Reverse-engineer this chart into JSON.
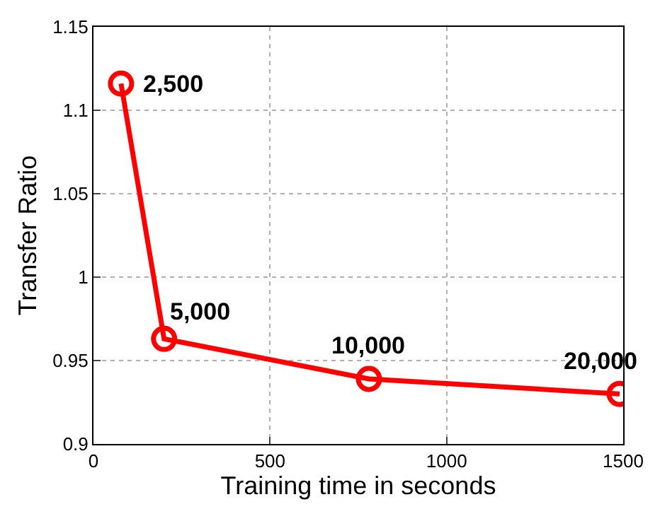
{
  "chart_data": {
    "type": "line",
    "xlabel": "Training time in seconds",
    "ylabel": "Transfer Ratio",
    "x": [
      78,
      200,
      780,
      1490
    ],
    "series": [
      {
        "color": "#ff0000",
        "values": [
          1.116,
          0.963,
          0.939,
          0.93
        ]
      }
    ],
    "xlim": [
      0,
      1500
    ],
    "xticks": [
      0,
      500,
      1000,
      1500
    ],
    "ylim": [
      0.9,
      1.15
    ],
    "yticks": [
      0.9,
      0.95,
      1,
      1.05,
      1.1,
      1.15
    ],
    "grid": true,
    "marker": "circle",
    "line_style": "solid",
    "annotations": [
      {
        "text": "2,500",
        "x": 78,
        "y": 1.116
      },
      {
        "text": "5,000",
        "x": 200,
        "y": 0.963
      },
      {
        "text": "10,000",
        "x": 780,
        "y": 0.939
      },
      {
        "text": "20,000",
        "x": 1490,
        "y": 0.93
      }
    ]
  }
}
